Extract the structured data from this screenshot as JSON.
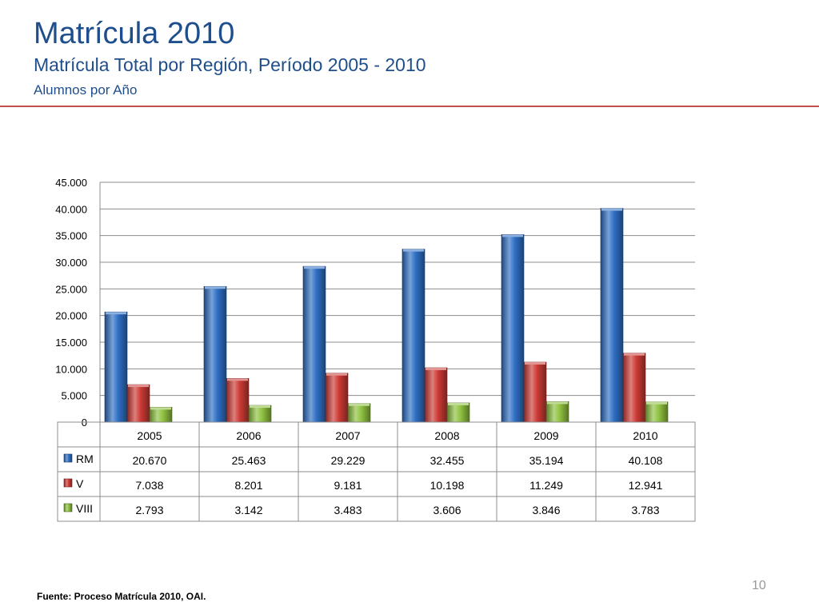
{
  "slide": {
    "title": "Matrícula 2010",
    "subtitle": "Matrícula Total por Región, Período 2005 - 2010",
    "subtitle2": "Alumnos por Año",
    "page_number": "10",
    "source": "Fuente: Proceso Matrícula 2010, OAI."
  },
  "colors": {
    "accent_rule": "#c0504d",
    "title": "#1f4e8c"
  },
  "chart_data": {
    "type": "bar",
    "title": "",
    "xlabel": "",
    "ylabel": "",
    "categories": [
      "2005",
      "2006",
      "2007",
      "2008",
      "2009",
      "2010"
    ],
    "ylim": [
      0,
      45000
    ],
    "yticks": [
      0,
      5000,
      10000,
      15000,
      20000,
      25000,
      30000,
      35000,
      40000,
      45000
    ],
    "ytick_labels": [
      "0",
      "5.000",
      "10.000",
      "15.000",
      "20.000",
      "25.000",
      "30.000",
      "35.000",
      "40.000",
      "45.000"
    ],
    "grid": true,
    "legend": "data-table",
    "series": [
      {
        "name": "RM",
        "color": "#2e6fc4",
        "values": [
          20670,
          25463,
          29229,
          32455,
          35194,
          40108
        ],
        "labels": [
          "20.670",
          "25.463",
          "29.229",
          "32.455",
          "35.194",
          "40.108"
        ]
      },
      {
        "name": "V",
        "color": "#cc3a35",
        "values": [
          7038,
          8201,
          9181,
          10198,
          11249,
          12941
        ],
        "labels": [
          "7.038",
          "8.201",
          "9.181",
          "10.198",
          "11.249",
          "12.941"
        ]
      },
      {
        "name": "VIII",
        "color": "#8fc23f",
        "values": [
          2793,
          3142,
          3483,
          3606,
          3846,
          3783
        ],
        "labels": [
          "2.793",
          "3.142",
          "3.483",
          "3.606",
          "3.846",
          "3.783"
        ]
      }
    ]
  }
}
